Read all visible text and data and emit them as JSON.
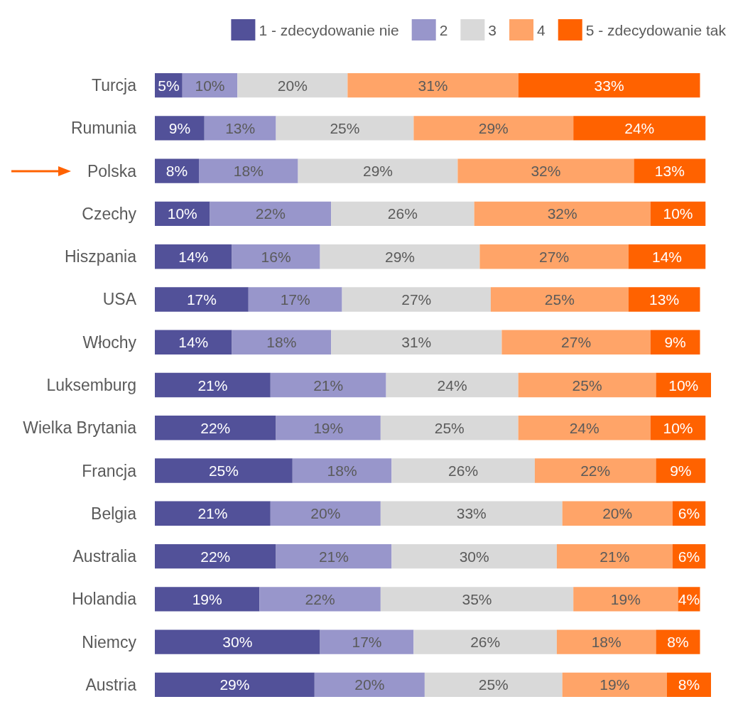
{
  "chart_data": {
    "type": "bar",
    "orientation": "horizontal",
    "stacked": true,
    "legend": "top right",
    "categories": [
      "Turcja",
      "Rumunia",
      "Polska",
      "Czechy",
      "Hiszpania",
      "USA",
      "Włochy",
      "Luksemburg",
      "Wielka Brytania",
      "Francja",
      "Belgia",
      "Australia",
      "Holandia",
      "Niemcy",
      "Austria"
    ],
    "series": [
      {
        "name": "1 - zdecydowanie nie",
        "color": "#525199",
        "values": [
          5,
          9,
          8,
          10,
          14,
          17,
          14,
          21,
          22,
          25,
          21,
          22,
          19,
          30,
          29
        ],
        "value_labels": [
          "5%",
          "9%",
          "8%",
          "10%",
          "14%",
          "17%",
          "14%",
          "21%",
          "22%",
          "25%",
          "21%",
          "22%",
          "19%",
          "30%",
          "29%"
        ]
      },
      {
        "name": "2",
        "color": "#9896cb",
        "values": [
          10,
          13,
          18,
          22,
          16,
          17,
          18,
          21,
          19,
          18,
          20,
          21,
          22,
          17,
          20
        ],
        "value_labels": [
          "10%",
          "13%",
          "18%",
          "22%",
          "16%",
          "17%",
          "18%",
          "21%",
          "19%",
          "18%",
          "20%",
          "21%",
          "22%",
          "17%",
          "20%"
        ]
      },
      {
        "name": "3",
        "color": "#d9d9d9",
        "values": [
          20,
          25,
          29,
          26,
          29,
          27,
          31,
          24,
          25,
          26,
          33,
          30,
          35,
          26,
          25
        ],
        "value_labels": [
          "20%",
          "25%",
          "29%",
          "26%",
          "29%",
          "27%",
          "31%",
          "24%",
          "25%",
          "26%",
          "33%",
          "30%",
          "35%",
          "26%",
          "25%"
        ]
      },
      {
        "name": "4",
        "color": "#ffa468",
        "values": [
          31,
          29,
          32,
          32,
          27,
          25,
          27,
          25,
          24,
          22,
          20,
          21,
          19,
          18,
          19
        ],
        "value_labels": [
          "31%",
          "29%",
          "32%",
          "32%",
          "27%",
          "25%",
          "27%",
          "25%",
          "24%",
          "22%",
          "20%",
          "21%",
          "19%",
          "18%",
          "19%"
        ]
      },
      {
        "name": "5 - zdecydowanie tak",
        "color": "#ff6200",
        "values": [
          33,
          24,
          13,
          10,
          14,
          13,
          9,
          10,
          10,
          9,
          6,
          6,
          4,
          8,
          8
        ],
        "value_labels": [
          "33%",
          "24%",
          "13%",
          "10%",
          "14%",
          "13%",
          "9%",
          "10%",
          "10%",
          "9%",
          "6%",
          "6%",
          "4%",
          "8%",
          "8%"
        ]
      }
    ]
  }
}
